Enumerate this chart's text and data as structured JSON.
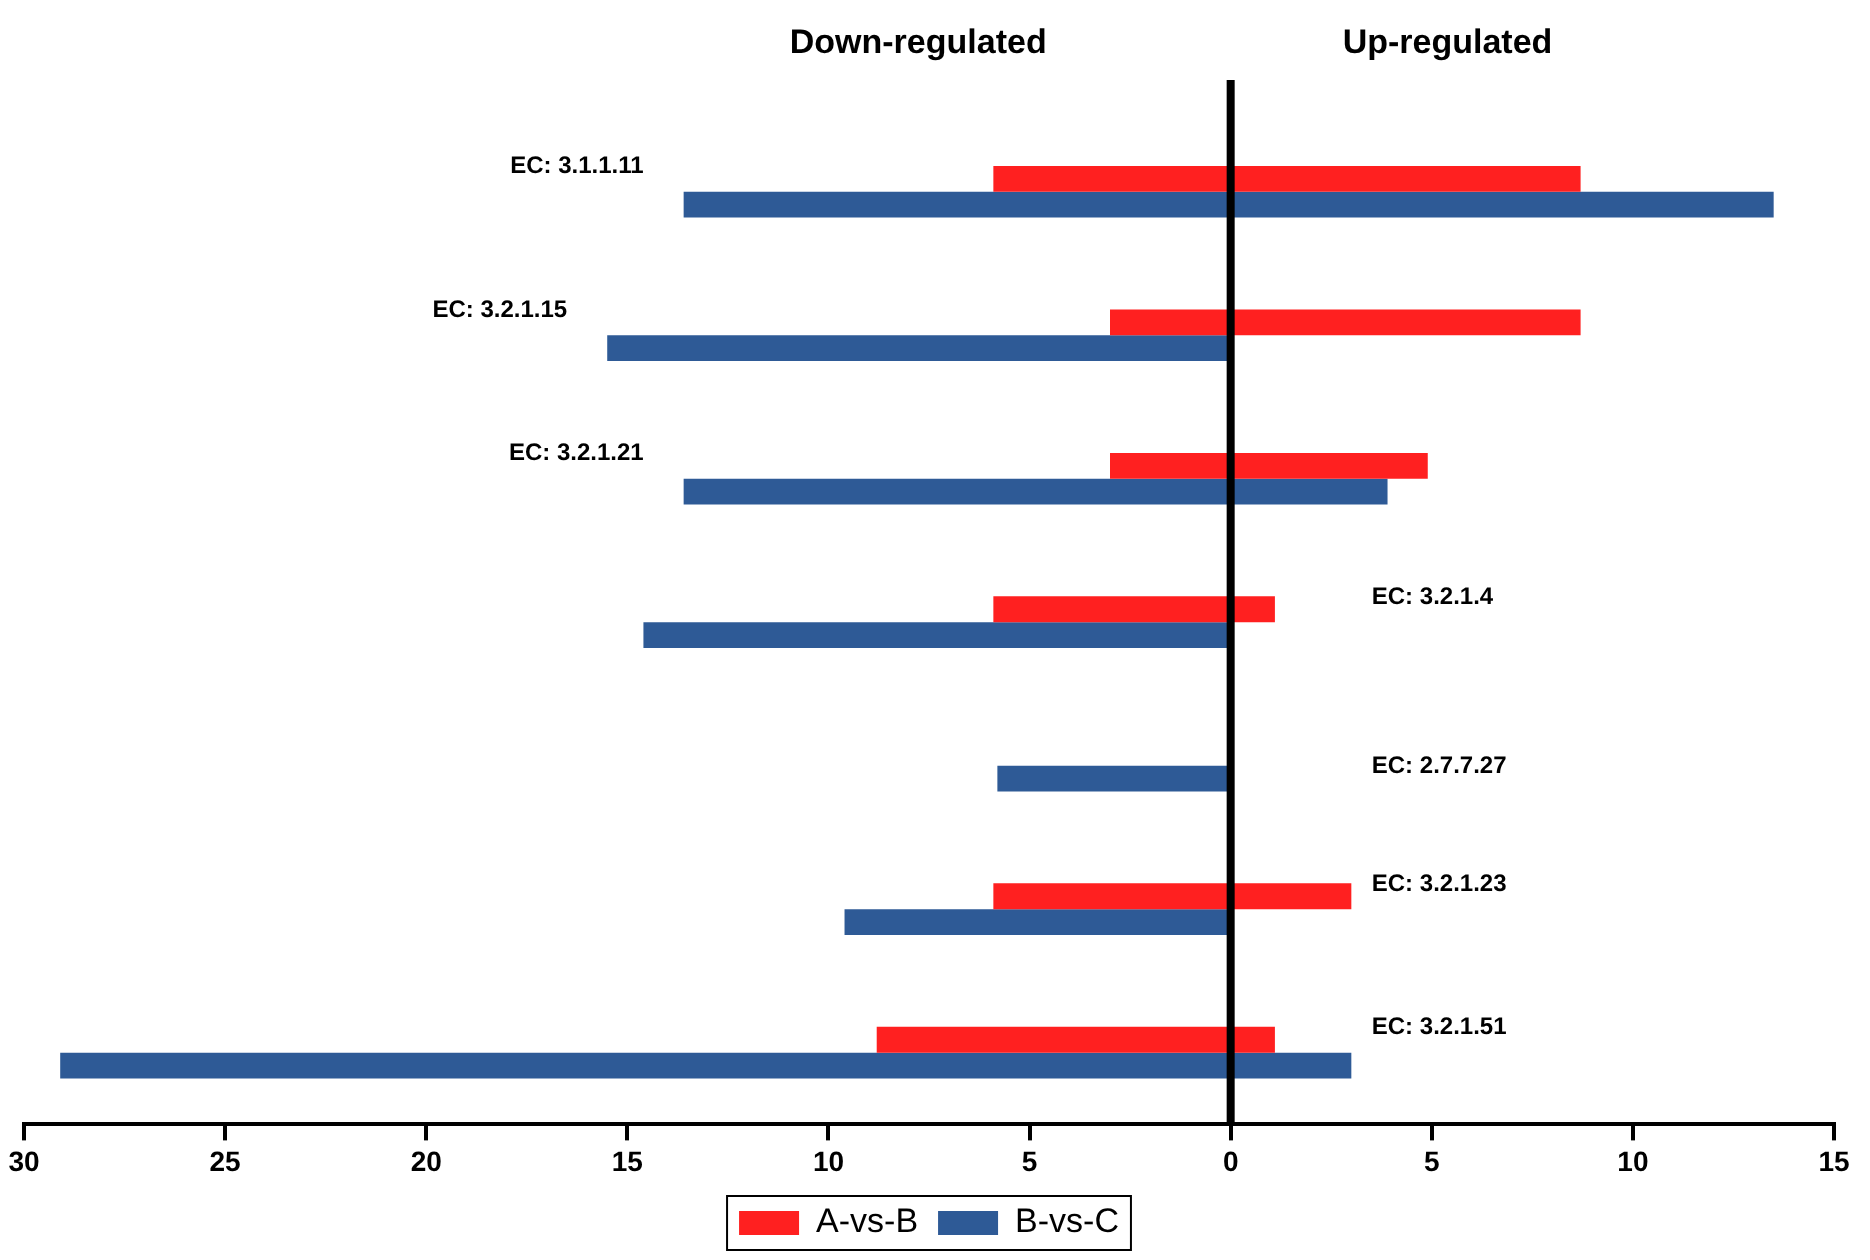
{
  "chart_data": {
    "type": "bar",
    "orientation": "horizontal",
    "categories": [
      "EC: 3.1.1.11",
      "EC: 3.2.1.15",
      "EC: 3.2.1.21",
      "EC: 3.2.1.4",
      "EC: 2.7.7.27",
      "EC: 3.2.1.23",
      "EC: 3.2.1.51"
    ],
    "series": [
      {
        "name": "A-vs-B",
        "color": "#ff2020",
        "base": [
          -5.9,
          -3.0,
          -3.0,
          -5.9,
          null,
          -5.9,
          -8.8
        ],
        "values": [
          14.6,
          11.7,
          7.9,
          7.0,
          null,
          8.9,
          9.9
        ]
      },
      {
        "name": "B-vs-C",
        "color": "#2e5a96",
        "base": [
          -13.6,
          -15.5,
          -13.6,
          -14.6,
          -5.8,
          -9.6,
          -29.1
        ],
        "values": [
          27.1,
          15.5,
          17.5,
          14.6,
          5.8,
          9.6,
          32.1
        ]
      }
    ],
    "xlim": [
      -30,
      15
    ],
    "xticks": [
      {
        "value": -30,
        "label": "30"
      },
      {
        "value": -25,
        "label": "25"
      },
      {
        "value": -20,
        "label": "20"
      },
      {
        "value": -15,
        "label": "15"
      },
      {
        "value": -10,
        "label": "10"
      },
      {
        "value": -5,
        "label": "5"
      },
      0,
      5,
      10,
      15
    ],
    "ref_lines": [
      {
        "axis": "x",
        "value": 0,
        "color": "#000000"
      }
    ],
    "annotations": [
      "Down-regulated",
      "Up-regulated"
    ],
    "legend": "bottom",
    "grid": false
  }
}
